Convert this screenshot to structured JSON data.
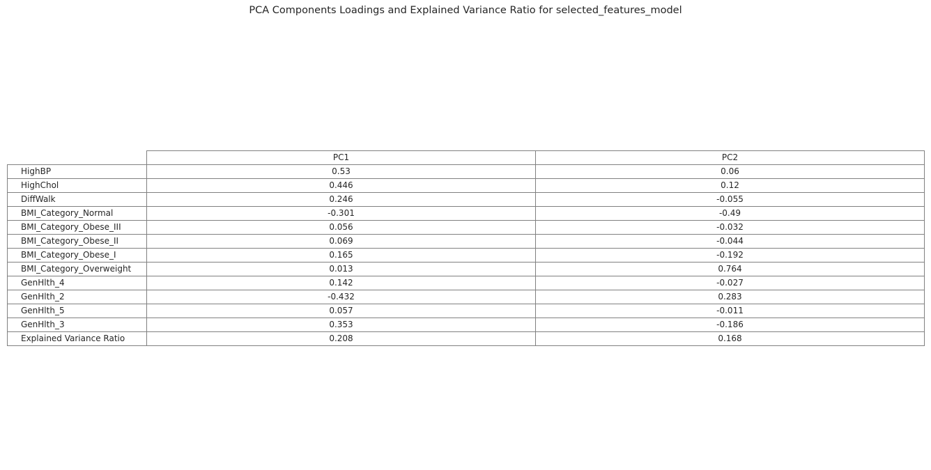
{
  "chart_data": {
    "type": "table",
    "title": "PCA Components Loadings and Explained Variance Ratio for selected_features_model",
    "columns": [
      "PC1",
      "PC2"
    ],
    "rows": [
      {
        "label": "HighBP",
        "values": [
          "0.53",
          "0.06"
        ]
      },
      {
        "label": "HighChol",
        "values": [
          "0.446",
          "0.12"
        ]
      },
      {
        "label": "DiffWalk",
        "values": [
          "0.246",
          "-0.055"
        ]
      },
      {
        "label": "BMI_Category_Normal",
        "values": [
          "-0.301",
          "-0.49"
        ]
      },
      {
        "label": "BMI_Category_Obese_III",
        "values": [
          "0.056",
          "-0.032"
        ]
      },
      {
        "label": "BMI_Category_Obese_II",
        "values": [
          "0.069",
          "-0.044"
        ]
      },
      {
        "label": "BMI_Category_Obese_I",
        "values": [
          "0.165",
          "-0.192"
        ]
      },
      {
        "label": "BMI_Category_Overweight",
        "values": [
          "0.013",
          "0.764"
        ]
      },
      {
        "label": "GenHlth_4",
        "values": [
          "0.142",
          "-0.027"
        ]
      },
      {
        "label": "GenHlth_2",
        "values": [
          "-0.432",
          "0.283"
        ]
      },
      {
        "label": "GenHlth_5",
        "values": [
          "0.057",
          "-0.011"
        ]
      },
      {
        "label": "GenHlth_3",
        "values": [
          "0.353",
          "-0.186"
        ]
      },
      {
        "label": "Explained Variance Ratio",
        "values": [
          "0.208",
          "0.168"
        ]
      }
    ]
  }
}
